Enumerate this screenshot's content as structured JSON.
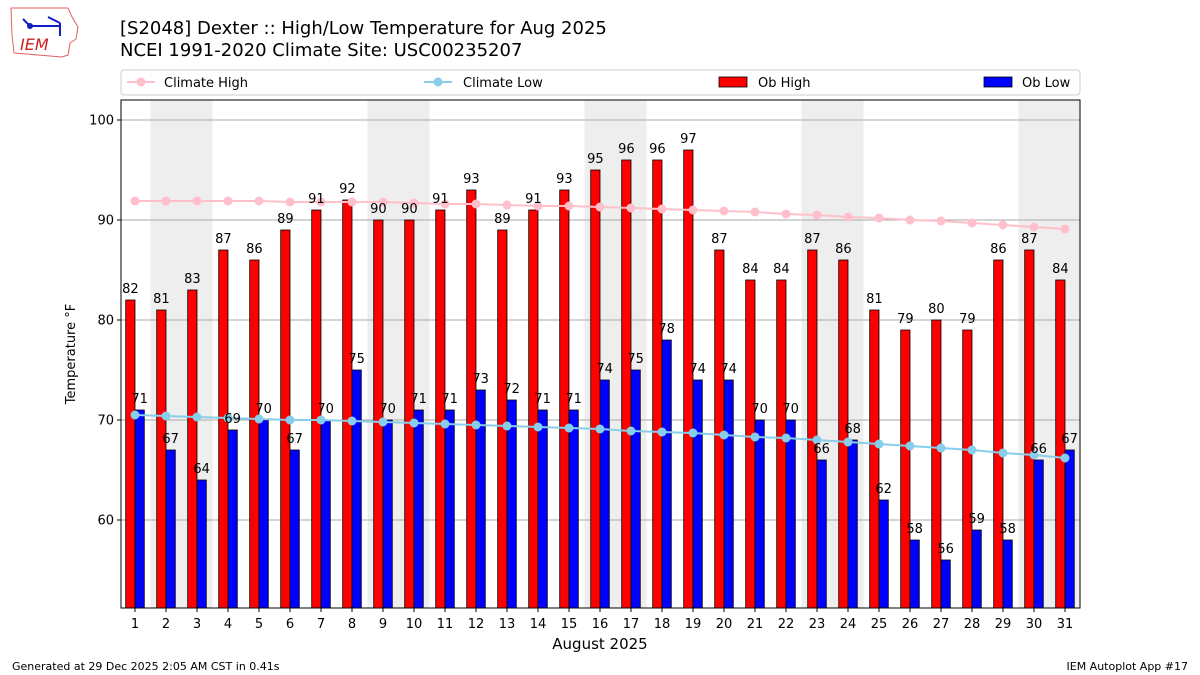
{
  "header": {
    "title_line1": "[S2048] Dexter :: High/Low Temperature for Aug 2025",
    "title_line2": "NCEI 1991-2020 Climate Site: USC00235207",
    "logo_text": "IEM"
  },
  "footer": {
    "generated": "Generated at 29 Dec 2025 2:05 AM CST in 0.41s",
    "app": "IEM Autoplot App #17"
  },
  "colors": {
    "ob_high": "#ff0000",
    "ob_low": "#0000ff",
    "climate_high": "#ffc0cb",
    "climate_low": "#87ceeb",
    "weekend": "#eeeeee"
  },
  "chart_data": {
    "type": "bar",
    "xlabel": "August 2025",
    "ylabel": "Temperature °F",
    "ylim": [
      51.2,
      102
    ],
    "yticks": [
      60,
      70,
      80,
      90,
      100
    ],
    "grid": true,
    "legend_placement": "top",
    "weekend_days": [
      2,
      3,
      9,
      10,
      16,
      17,
      23,
      24,
      30,
      31
    ],
    "x": [
      1,
      2,
      3,
      4,
      5,
      6,
      7,
      8,
      9,
      10,
      11,
      12,
      13,
      14,
      15,
      16,
      17,
      18,
      19,
      20,
      21,
      22,
      23,
      24,
      25,
      26,
      27,
      28,
      29,
      30,
      31
    ],
    "series": [
      {
        "name": "Climate High",
        "kind": "line",
        "values": [
          91.9,
          91.9,
          91.9,
          91.9,
          91.9,
          91.8,
          91.8,
          91.8,
          91.8,
          91.7,
          91.6,
          91.6,
          91.5,
          91.4,
          91.4,
          91.3,
          91.2,
          91.1,
          91.0,
          90.9,
          90.8,
          90.6,
          90.5,
          90.3,
          90.2,
          90.0,
          89.9,
          89.7,
          89.5,
          89.3,
          89.1
        ]
      },
      {
        "name": "Climate Low",
        "kind": "line",
        "values": [
          70.5,
          70.4,
          70.3,
          70.2,
          70.1,
          70.0,
          70.0,
          69.9,
          69.8,
          69.7,
          69.6,
          69.5,
          69.4,
          69.3,
          69.2,
          69.1,
          68.9,
          68.8,
          68.7,
          68.5,
          68.3,
          68.2,
          68.0,
          67.8,
          67.6,
          67.4,
          67.2,
          67.0,
          66.7,
          66.5,
          66.2
        ]
      },
      {
        "name": "Ob High",
        "kind": "bar",
        "values": [
          82,
          81,
          83,
          87,
          86,
          89,
          91,
          92,
          90,
          90,
          91,
          93,
          89,
          91,
          93,
          95,
          96,
          96,
          97,
          87,
          84,
          84,
          87,
          86,
          81,
          79,
          80,
          79,
          86,
          87,
          84
        ]
      },
      {
        "name": "Ob Low",
        "kind": "bar",
        "values": [
          71,
          67,
          64,
          69,
          70,
          67,
          70,
          75,
          70,
          71,
          71,
          73,
          72,
          71,
          71,
          74,
          75,
          78,
          74,
          74,
          70,
          70,
          66,
          68,
          62,
          58,
          56,
          59,
          58,
          66,
          67
        ]
      }
    ]
  }
}
